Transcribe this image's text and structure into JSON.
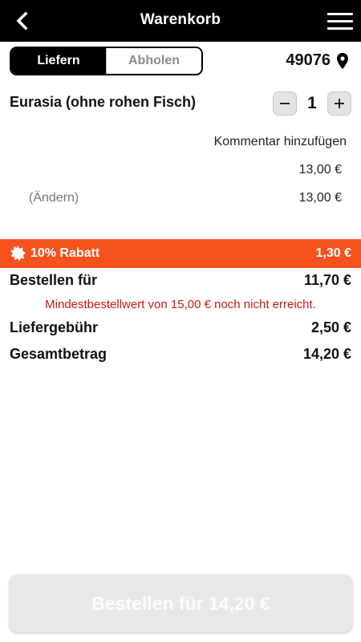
{
  "header": {
    "title": "Warenkorb",
    "back_icon": "chevron-left-icon",
    "menu_icon": "hamburger-menu-icon"
  },
  "mode_toggle": {
    "active": "Liefern",
    "inactive": "Abholen"
  },
  "zip_code": "49076",
  "cart": {
    "item_name": "Eurasia (ohne rohen Fisch)",
    "quantity": "1",
    "comment_link": "Kommentar hinzufügen",
    "item_price": "13,00 €",
    "change_link": "(Ändern)",
    "option_price": "13,00 €"
  },
  "discount": {
    "label": "10% Rabatt",
    "amount": "1,30 €",
    "icon": "badge-icon",
    "color": "#f5521e"
  },
  "summary": {
    "order_for_label": "Bestellen für",
    "order_for_value": "11,70 €",
    "min_order_warning": "Mindestbestellwert von 15,00 € noch nicht erreicht.",
    "delivery_fee_label": "Liefergebühr",
    "delivery_fee_value": "2,50 €",
    "total_label": "Gesamtbetrag",
    "total_value": "14,20 €"
  },
  "order_button": {
    "label": "Bestellen für 14,20 €"
  }
}
